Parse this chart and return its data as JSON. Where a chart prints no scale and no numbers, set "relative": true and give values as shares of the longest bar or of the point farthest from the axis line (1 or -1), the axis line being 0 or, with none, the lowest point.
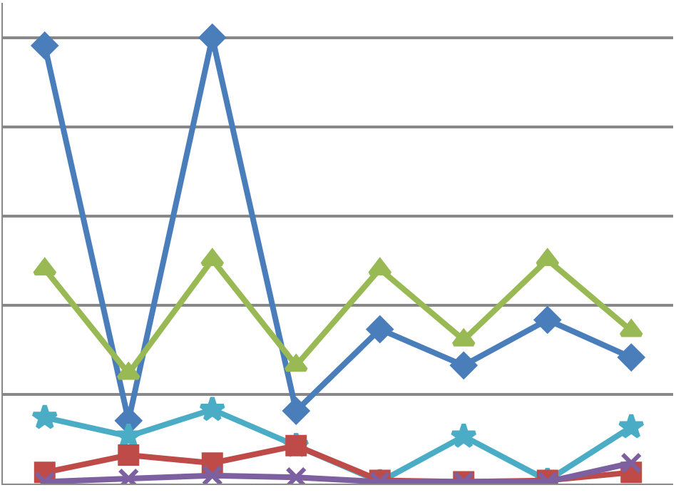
{
  "chart_data": {
    "type": "line",
    "relative": true,
    "grid": "y",
    "legend": false,
    "categories": [
      null,
      null,
      null,
      null,
      null,
      null,
      null,
      null
    ],
    "series": [
      {
        "color": "#4a7ebb",
        "marker": "diamond",
        "values": [
          0.982,
          0.141,
          1,
          0.163,
          0.346,
          0.265,
          0.367,
          0.283
        ]
      },
      {
        "color": "#98b954",
        "marker": "triangle",
        "values": [
          0.481,
          0.247,
          0.502,
          0.265,
          0.481,
          0.322,
          0.502,
          0.343
        ]
      },
      {
        "color": "#4bacc6",
        "marker": "star",
        "values": [
          0.148,
          0.106,
          0.166,
          0.085,
          0.004,
          0.106,
          0.007,
          0.127
        ]
      },
      {
        "color": "#be4b48",
        "marker": "square",
        "values": [
          0.025,
          0.064,
          0.046,
          0.085,
          0.007,
          0.004,
          0.007,
          0.025
        ]
      },
      {
        "color": "#7d60a0",
        "marker": "cross",
        "values": [
          0.004,
          0.011,
          0.018,
          0.014,
          0.004,
          0.004,
          0.004,
          0.046
        ]
      }
    ]
  }
}
